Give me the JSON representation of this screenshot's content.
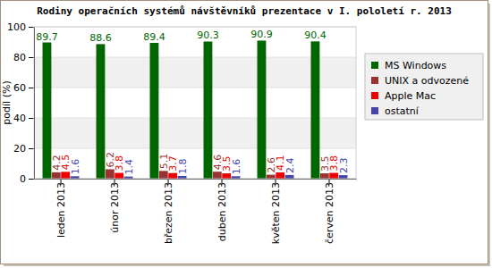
{
  "chart_data": {
    "type": "bar",
    "title": "Rodiny operačních systémů návštěvníků prezentace v I. pololetí r. 2013",
    "y_label": "podíl (%)",
    "categories": [
      "leden 2013",
      "únor 2013",
      "březen 2013",
      "duben 2013",
      "květen 2013",
      "červen 2013"
    ],
    "series": [
      {
        "name": "MS Windows",
        "color": "#006600",
        "values": [
          89.7,
          88.6,
          89.4,
          90.3,
          90.9,
          90.4
        ]
      },
      {
        "name": "UNIX a odvozené",
        "color": "#993333",
        "values": [
          4.2,
          6.2,
          5.1,
          4.6,
          2.6,
          3.5
        ]
      },
      {
        "name": "Apple Mac",
        "color": "#ee0000",
        "values": [
          4.5,
          3.8,
          3.7,
          3.5,
          4.1,
          3.8
        ]
      },
      {
        "name": "ostatní",
        "color": "#4444aa",
        "values": [
          1.6,
          1.4,
          1.8,
          1.6,
          2.4,
          2.3
        ]
      }
    ],
    "ylim": [
      0,
      100
    ],
    "yticks": [
      0,
      20,
      40,
      60,
      80,
      100
    ],
    "grid": true,
    "legend": "right",
    "data_labels": true
  }
}
